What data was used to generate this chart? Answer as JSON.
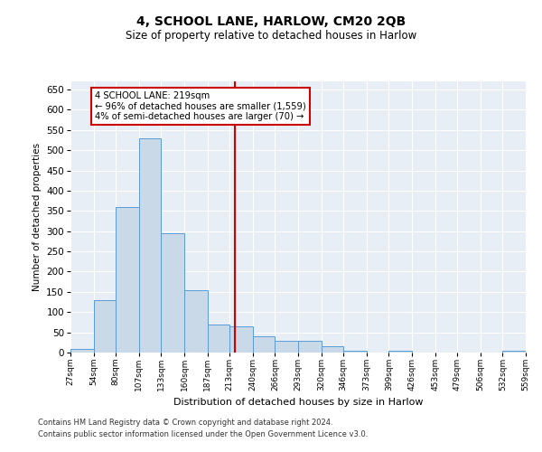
{
  "title": "4, SCHOOL LANE, HARLOW, CM20 2QB",
  "subtitle": "Size of property relative to detached houses in Harlow",
  "xlabel": "Distribution of detached houses by size in Harlow",
  "ylabel": "Number of detached properties",
  "bar_color": "#c9d9e8",
  "bar_edge_color": "#5b9bd5",
  "bg_color": "#e8eef5",
  "marker_value": 219,
  "marker_color": "#cc0000",
  "annotation_text": "4 SCHOOL LANE: 219sqm\n← 96% of detached houses are smaller (1,559)\n4% of semi-detached houses are larger (70) →",
  "bin_edges": [
    27,
    54,
    80,
    107,
    133,
    160,
    187,
    213,
    240,
    266,
    293,
    320,
    346,
    373,
    399,
    426,
    453,
    479,
    506,
    532,
    559
  ],
  "bar_heights": [
    10,
    130,
    360,
    530,
    295,
    155,
    70,
    65,
    40,
    30,
    30,
    15,
    5,
    0,
    5,
    0,
    0,
    0,
    0,
    5
  ],
  "ylim": [
    0,
    670
  ],
  "yticks": [
    0,
    50,
    100,
    150,
    200,
    250,
    300,
    350,
    400,
    450,
    500,
    550,
    600,
    650
  ],
  "footer_line1": "Contains HM Land Registry data © Crown copyright and database right 2024.",
  "footer_line2": "Contains public sector information licensed under the Open Government Licence v3.0."
}
